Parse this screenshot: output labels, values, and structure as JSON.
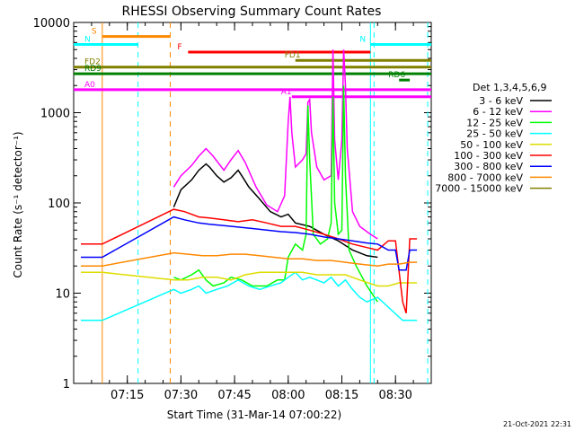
{
  "chart_data": {
    "type": "line",
    "title": "RHESSI Observing Summary Count Rates",
    "xlabel": "Start Time (31-Mar-14 07:00:22)",
    "ylabel": "Count Rate (s⁻¹ detector⁻¹)",
    "yscale": "log",
    "ylim": [
      1,
      10000
    ],
    "xlim_minutes": [
      0,
      100
    ],
    "y_ticks": [
      {
        "value": 1,
        "label": "1"
      },
      {
        "value": 10,
        "label": "10"
      },
      {
        "value": 100,
        "label": "100"
      },
      {
        "value": 1000,
        "label": "1000"
      },
      {
        "value": 10000,
        "label": "10000"
      }
    ],
    "x_ticks": [
      {
        "minutes": 15,
        "label": "07:15"
      },
      {
        "minutes": 30,
        "label": "07:30"
      },
      {
        "minutes": 45,
        "label": "07:45"
      },
      {
        "minutes": 60,
        "label": "08:00"
      },
      {
        "minutes": 75,
        "label": "08:15"
      },
      {
        "minutes": 90,
        "label": "08:30"
      }
    ],
    "legend_title": "Det 1,3,4,5,6,9",
    "series": [
      {
        "name": "3 - 6 keV",
        "color": "#000000",
        "points": [
          [
            28,
            90
          ],
          [
            30,
            140
          ],
          [
            33,
            180
          ],
          [
            35,
            230
          ],
          [
            37,
            270
          ],
          [
            38,
            250
          ],
          [
            40,
            200
          ],
          [
            42,
            170
          ],
          [
            44,
            190
          ],
          [
            46,
            230
          ],
          [
            47,
            200
          ],
          [
            49,
            150
          ],
          [
            52,
            110
          ],
          [
            55,
            80
          ],
          [
            58,
            70
          ],
          [
            60,
            75
          ],
          [
            62,
            60
          ],
          [
            66,
            55
          ],
          [
            70,
            45
          ],
          [
            74,
            38
          ],
          [
            78,
            30
          ],
          [
            82,
            26
          ],
          [
            85,
            25
          ]
        ]
      },
      {
        "name": "6 - 12 keV",
        "color": "#ff00ff",
        "points": [
          [
            28,
            150
          ],
          [
            30,
            200
          ],
          [
            33,
            260
          ],
          [
            35,
            330
          ],
          [
            37,
            400
          ],
          [
            39,
            330
          ],
          [
            42,
            230
          ],
          [
            44,
            300
          ],
          [
            46,
            380
          ],
          [
            48,
            280
          ],
          [
            51,
            150
          ],
          [
            54,
            95
          ],
          [
            57,
            80
          ],
          [
            59,
            120
          ],
          [
            60,
            800
          ],
          [
            60.5,
            1500
          ],
          [
            61,
            600
          ],
          [
            62,
            250
          ],
          [
            64,
            300
          ],
          [
            65,
            350
          ],
          [
            65.5,
            1300
          ],
          [
            66,
            1400
          ],
          [
            66.5,
            600
          ],
          [
            68,
            250
          ],
          [
            70,
            180
          ],
          [
            71,
            190
          ],
          [
            72,
            200
          ],
          [
            72.5,
            5000
          ],
          [
            73,
            500
          ],
          [
            74,
            180
          ],
          [
            75,
            500
          ],
          [
            75.5,
            5000
          ],
          [
            76,
            2000
          ],
          [
            76.5,
            400
          ],
          [
            78,
            80
          ],
          [
            80,
            55
          ],
          [
            83,
            45
          ],
          [
            85,
            40
          ]
        ]
      },
      {
        "name": "12 - 25 keV",
        "color": "#00ff00",
        "points": [
          [
            28,
            15
          ],
          [
            30,
            14
          ],
          [
            33,
            16
          ],
          [
            35,
            18
          ],
          [
            37,
            14
          ],
          [
            39,
            12
          ],
          [
            42,
            13
          ],
          [
            44,
            15
          ],
          [
            47,
            14
          ],
          [
            50,
            12
          ],
          [
            54,
            12
          ],
          [
            57,
            14
          ],
          [
            59,
            14
          ],
          [
            60,
            25
          ],
          [
            62,
            35
          ],
          [
            64,
            30
          ],
          [
            65,
            45
          ],
          [
            65.5,
            1200
          ],
          [
            66,
            300
          ],
          [
            67,
            45
          ],
          [
            69,
            35
          ],
          [
            71,
            40
          ],
          [
            72,
            60
          ],
          [
            72.5,
            1500
          ],
          [
            73,
            100
          ],
          [
            74,
            45
          ],
          [
            75,
            50
          ],
          [
            75.5,
            2000
          ],
          [
            76,
            200
          ],
          [
            77,
            30
          ],
          [
            79,
            20
          ],
          [
            82,
            12
          ],
          [
            85,
            8
          ]
        ]
      },
      {
        "name": "25 - 50 keV",
        "color": "#00ffff",
        "points": [
          [
            2,
            5
          ],
          [
            8,
            5
          ],
          [
            28,
            11
          ],
          [
            30,
            10
          ],
          [
            33,
            11
          ],
          [
            35,
            12
          ],
          [
            37,
            10
          ],
          [
            40,
            11
          ],
          [
            43,
            12
          ],
          [
            46,
            14
          ],
          [
            49,
            12
          ],
          [
            52,
            11
          ],
          [
            55,
            12
          ],
          [
            58,
            13
          ],
          [
            60,
            15
          ],
          [
            62,
            17
          ],
          [
            64,
            14
          ],
          [
            66,
            15
          ],
          [
            68,
            14
          ],
          [
            70,
            13
          ],
          [
            72,
            15
          ],
          [
            74,
            12
          ],
          [
            76,
            14
          ],
          [
            78,
            11
          ],
          [
            80,
            9
          ],
          [
            82,
            8
          ],
          [
            85,
            9
          ],
          [
            92,
            5
          ],
          [
            96,
            5
          ]
        ]
      },
      {
        "name": "50 - 100 keV",
        "color": "#dddd00",
        "points": [
          [
            2,
            17
          ],
          [
            8,
            17
          ],
          [
            28,
            14
          ],
          [
            32,
            14
          ],
          [
            36,
            15
          ],
          [
            40,
            15
          ],
          [
            44,
            14
          ],
          [
            48,
            16
          ],
          [
            52,
            17
          ],
          [
            56,
            17
          ],
          [
            60,
            17
          ],
          [
            64,
            17
          ],
          [
            68,
            16
          ],
          [
            72,
            16
          ],
          [
            76,
            16
          ],
          [
            80,
            14
          ],
          [
            85,
            12
          ],
          [
            88,
            12
          ],
          [
            91,
            13
          ],
          [
            94,
            13
          ],
          [
            96,
            13
          ]
        ]
      },
      {
        "name": "100 - 300 keV",
        "color": "#ff0000",
        "points": [
          [
            2,
            35
          ],
          [
            8,
            35
          ],
          [
            28,
            85
          ],
          [
            31,
            80
          ],
          [
            35,
            70
          ],
          [
            38,
            68
          ],
          [
            42,
            65
          ],
          [
            46,
            62
          ],
          [
            50,
            65
          ],
          [
            54,
            60
          ],
          [
            58,
            55
          ],
          [
            62,
            55
          ],
          [
            66,
            50
          ],
          [
            70,
            45
          ],
          [
            74,
            40
          ],
          [
            78,
            35
          ],
          [
            82,
            32
          ],
          [
            85,
            30
          ],
          [
            88,
            38
          ],
          [
            90,
            38
          ],
          [
            92,
            8
          ],
          [
            93,
            6
          ],
          [
            94,
            40
          ],
          [
            96,
            40
          ]
        ]
      },
      {
        "name": "300 - 800 keV",
        "color": "#0000ff",
        "points": [
          [
            2,
            25
          ],
          [
            8,
            25
          ],
          [
            28,
            70
          ],
          [
            31,
            65
          ],
          [
            35,
            60
          ],
          [
            38,
            58
          ],
          [
            42,
            56
          ],
          [
            46,
            54
          ],
          [
            50,
            52
          ],
          [
            54,
            50
          ],
          [
            58,
            48
          ],
          [
            62,
            47
          ],
          [
            66,
            45
          ],
          [
            70,
            42
          ],
          [
            74,
            40
          ],
          [
            78,
            38
          ],
          [
            82,
            36
          ],
          [
            85,
            35
          ],
          [
            88,
            30
          ],
          [
            90,
            30
          ],
          [
            91,
            18
          ],
          [
            93,
            18
          ],
          [
            94,
            30
          ],
          [
            96,
            30
          ]
        ]
      },
      {
        "name": "800 - 7000 keV",
        "color": "#ff8800",
        "points": [
          [
            2,
            20
          ],
          [
            8,
            20
          ],
          [
            28,
            28
          ],
          [
            32,
            27
          ],
          [
            36,
            26
          ],
          [
            40,
            26
          ],
          [
            44,
            27
          ],
          [
            48,
            27
          ],
          [
            52,
            26
          ],
          [
            56,
            25
          ],
          [
            60,
            24
          ],
          [
            64,
            24
          ],
          [
            68,
            23
          ],
          [
            72,
            23
          ],
          [
            76,
            22
          ],
          [
            80,
            21
          ],
          [
            85,
            20
          ],
          [
            88,
            21
          ],
          [
            91,
            21
          ],
          [
            94,
            22
          ],
          [
            96,
            22
          ]
        ]
      },
      {
        "name": "7000 - 15000 keV",
        "color": "#808000",
        "points": []
      }
    ],
    "mode_bars": [
      {
        "label": "S",
        "color": "#ff8800",
        "y": 7000,
        "x0": 8,
        "x1": 27
      },
      {
        "label": "N",
        "color": "#00ffff",
        "y": 5700,
        "x0": 0,
        "x1": 18
      },
      {
        "label": "N",
        "color": "#00ffff",
        "y": 5700,
        "x0": 83,
        "x1": 100
      },
      {
        "label": "F",
        "color": "#ff0000",
        "y": 4700,
        "x0": 32,
        "x1": 83
      },
      {
        "label": "FD1",
        "color": "#808000",
        "y": 3800,
        "x0": 62,
        "x1": 100
      },
      {
        "label": "FD2",
        "color": "#808000",
        "y": 3200,
        "x0": 0,
        "x1": 100
      },
      {
        "label": "RD9",
        "color": "#008000",
        "y": 2700,
        "x0": 0,
        "x1": 100
      },
      {
        "label": "RD6",
        "color": "#008000",
        "y": 2300,
        "x0": 91,
        "x1": 94
      },
      {
        "label": "A0",
        "color": "#ff00ff",
        "y": 1800,
        "x0": 0,
        "x1": 100
      },
      {
        "label": "A1",
        "color": "#ff00ff",
        "y": 1500,
        "x0": 61,
        "x1": 100
      }
    ],
    "dashed_lines": [
      {
        "color": "#00ffff",
        "x": 18
      },
      {
        "color": "#ff8800",
        "x": 27
      },
      {
        "color": "#00ffff",
        "x": 84
      },
      {
        "color": "#00ffff",
        "x": 99
      }
    ],
    "solid_lines": [
      {
        "color": "#ff8800",
        "x": 8
      },
      {
        "color": "#00ffff",
        "x": 83
      }
    ]
  },
  "timestamp": "21-Oct-2021 22:31"
}
